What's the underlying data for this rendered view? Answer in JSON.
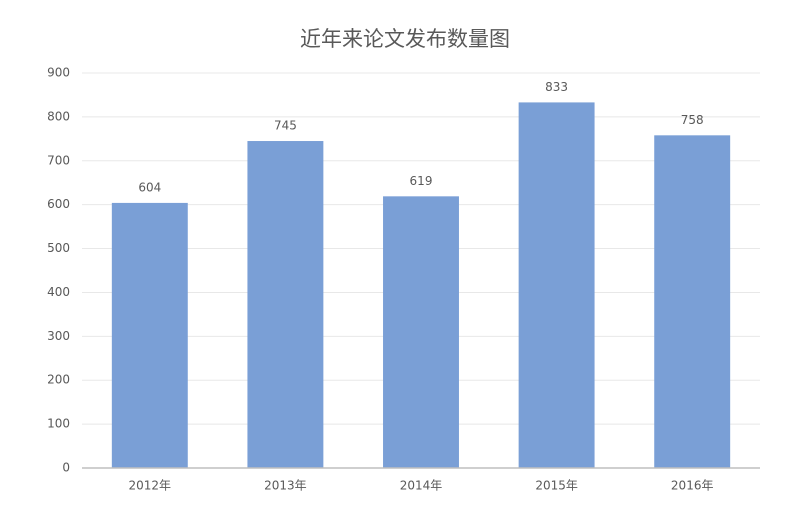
{
  "chart_data": {
    "type": "bar",
    "title": "近年来论文发布数量图",
    "categories": [
      "2012年",
      "2013年",
      "2014年",
      "2015年",
      "2016年"
    ],
    "values": [
      604,
      745,
      619,
      833,
      758
    ],
    "color": "#7a9fd6",
    "ylim": [
      0,
      900
    ],
    "yticks": [
      0,
      100,
      200,
      300,
      400,
      500,
      600,
      700,
      800,
      900
    ],
    "grid": true
  }
}
